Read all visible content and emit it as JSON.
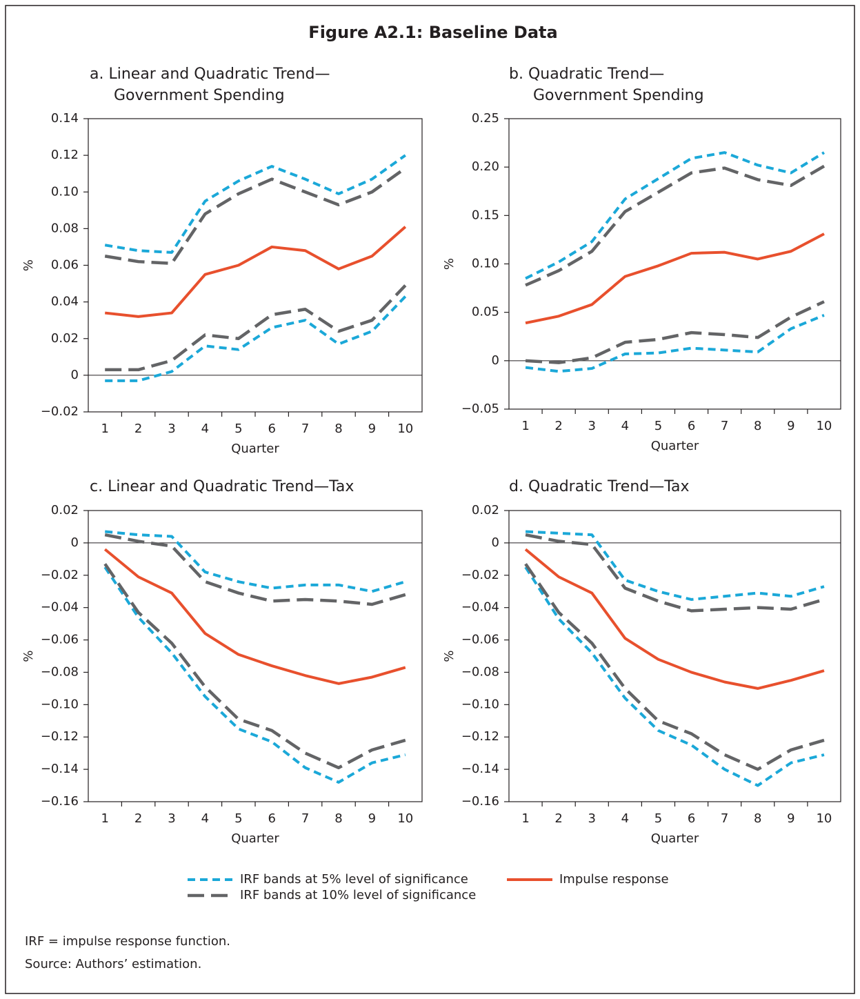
{
  "title": "Figure A2.1: Baseline Data",
  "notes": [
    "IRF = impulse response function.",
    "Source: Authors’ estimation."
  ],
  "chart_data": [
    {
      "type": "line",
      "title": [
        "a. Linear and Quadratic Trend—",
        "Government Spending"
      ],
      "x_label": "Quarter",
      "y_label": "%",
      "categories": [
        "1",
        "2",
        "3",
        "4",
        "5",
        "6",
        "7",
        "8",
        "9",
        "10"
      ],
      "ylim": [
        -0.02,
        0.14
      ],
      "yticks": [
        {
          "value": -0.02,
          "label": "−0.02"
        },
        0,
        0.02,
        0.04,
        0.06,
        0.08,
        {
          "value": 0.1,
          "label": "0.10"
        },
        0.12,
        0.14
      ],
      "series": [
        {
          "name": "IRF bands at 5% level of significance",
          "color": "#1ba8d8",
          "dash": "short",
          "values": [
            0.071,
            0.068,
            0.067,
            0.095,
            0.106,
            0.114,
            0.107,
            0.099,
            0.107,
            0.12
          ]
        },
        {
          "color": "#1ba8d8",
          "dash": "short",
          "values": [
            -0.003,
            -0.003,
            0.002,
            0.016,
            0.014,
            0.026,
            0.03,
            0.017,
            0.024,
            0.043
          ]
        },
        {
          "name": "IRF bands at 10% level of significance",
          "color": "#636466",
          "dash": "long",
          "values": [
            0.065,
            0.062,
            0.061,
            0.088,
            0.099,
            0.107,
            0.1,
            0.093,
            0.1,
            0.113
          ]
        },
        {
          "color": "#636466",
          "dash": "long",
          "values": [
            0.003,
            0.003,
            0.008,
            0.022,
            0.02,
            0.033,
            0.036,
            0.024,
            0.03,
            0.049
          ]
        },
        {
          "name": "Impulse response",
          "color": "#e8502d",
          "dash": "solid",
          "values": [
            0.034,
            0.032,
            0.034,
            0.055,
            0.06,
            0.07,
            0.068,
            0.058,
            0.065,
            0.081
          ]
        }
      ]
    },
    {
      "type": "line",
      "title": [
        "b. Quadratic Trend—",
        "Government Spending"
      ],
      "x_label": "Quarter",
      "y_label": "%",
      "categories": [
        "1",
        "2",
        "3",
        "4",
        "5",
        "6",
        "7",
        "8",
        "9",
        "10"
      ],
      "ylim": [
        -0.05,
        0.25
      ],
      "yticks": [
        {
          "value": -0.05,
          "label": "−0.05"
        },
        0,
        0.05,
        {
          "value": 0.1,
          "label": "0.10"
        },
        0.15,
        {
          "value": 0.2,
          "label": "0.20"
        },
        0.25
      ],
      "series": [
        {
          "color": "#1ba8d8",
          "dash": "short",
          "values": [
            0.085,
            0.102,
            0.123,
            0.167,
            0.188,
            0.209,
            0.215,
            0.202,
            0.194,
            0.215
          ]
        },
        {
          "color": "#1ba8d8",
          "dash": "short",
          "values": [
            -0.007,
            -0.011,
            -0.008,
            0.007,
            0.008,
            0.013,
            0.011,
            0.009,
            0.033,
            0.047
          ]
        },
        {
          "color": "#636466",
          "dash": "long",
          "values": [
            0.078,
            0.093,
            0.113,
            0.154,
            0.174,
            0.194,
            0.199,
            0.187,
            0.181,
            0.201
          ]
        },
        {
          "color": "#636466",
          "dash": "long",
          "values": [
            0.0,
            -0.002,
            0.003,
            0.019,
            0.022,
            0.029,
            0.027,
            0.024,
            0.045,
            0.061
          ]
        },
        {
          "color": "#e8502d",
          "dash": "solid",
          "values": [
            0.039,
            0.046,
            0.058,
            0.087,
            0.098,
            0.111,
            0.112,
            0.105,
            0.113,
            0.131
          ]
        }
      ]
    },
    {
      "type": "line",
      "title": [
        "c. Linear and Quadratic Trend—Tax"
      ],
      "x_label": "Quarter",
      "y_label": "%",
      "categories": [
        "1",
        "2",
        "3",
        "4",
        "5",
        "6",
        "7",
        "8",
        "9",
        "10"
      ],
      "ylim": [
        -0.16,
        0.02
      ],
      "yticks": [
        {
          "value": -0.16,
          "label": "−0.16"
        },
        {
          "value": -0.14,
          "label": "−0.14"
        },
        {
          "value": -0.12,
          "label": "−0.12"
        },
        {
          "value": -0.1,
          "label": "−0.10"
        },
        {
          "value": -0.08,
          "label": "−0.08"
        },
        {
          "value": -0.06,
          "label": "−0.06"
        },
        {
          "value": -0.04,
          "label": "−0.04"
        },
        {
          "value": -0.02,
          "label": "−0.02"
        },
        0,
        0.02
      ],
      "series": [
        {
          "color": "#1ba8d8",
          "dash": "short",
          "values": [
            0.007,
            0.005,
            0.004,
            -0.018,
            -0.024,
            -0.028,
            -0.026,
            -0.026,
            -0.03,
            -0.024
          ]
        },
        {
          "color": "#1ba8d8",
          "dash": "short",
          "values": [
            -0.015,
            -0.046,
            -0.068,
            -0.095,
            -0.115,
            -0.123,
            -0.139,
            -0.148,
            -0.136,
            -0.131
          ]
        },
        {
          "color": "#636466",
          "dash": "long",
          "values": [
            0.005,
            0.001,
            -0.002,
            -0.024,
            -0.031,
            -0.036,
            -0.035,
            -0.036,
            -0.038,
            -0.032
          ]
        },
        {
          "color": "#636466",
          "dash": "long",
          "values": [
            -0.013,
            -0.043,
            -0.062,
            -0.089,
            -0.109,
            -0.116,
            -0.13,
            -0.139,
            -0.128,
            -0.122
          ]
        },
        {
          "color": "#e8502d",
          "dash": "solid",
          "values": [
            -0.004,
            -0.021,
            -0.031,
            -0.056,
            -0.069,
            -0.076,
            -0.082,
            -0.087,
            -0.083,
            -0.077
          ]
        }
      ]
    },
    {
      "type": "line",
      "title": [
        "d. Quadratic Trend—Tax"
      ],
      "x_label": "Quarter",
      "y_label": "%",
      "categories": [
        "1",
        "2",
        "3",
        "4",
        "5",
        "6",
        "7",
        "8",
        "9",
        "10"
      ],
      "ylim": [
        -0.16,
        0.02
      ],
      "yticks": [
        {
          "value": -0.16,
          "label": "−0.16"
        },
        {
          "value": -0.14,
          "label": "−0.14"
        },
        {
          "value": -0.12,
          "label": "−0.12"
        },
        {
          "value": -0.1,
          "label": "−0.10"
        },
        {
          "value": -0.08,
          "label": "−0.08"
        },
        {
          "value": -0.06,
          "label": "−0.06"
        },
        {
          "value": -0.04,
          "label": "−0.04"
        },
        {
          "value": -0.02,
          "label": "−0.02"
        },
        0,
        0.02
      ],
      "series": [
        {
          "color": "#1ba8d8",
          "dash": "short",
          "values": [
            0.007,
            0.006,
            0.005,
            -0.023,
            -0.03,
            -0.035,
            -0.033,
            -0.031,
            -0.033,
            -0.027
          ]
        },
        {
          "color": "#1ba8d8",
          "dash": "short",
          "values": [
            -0.015,
            -0.047,
            -0.068,
            -0.096,
            -0.116,
            -0.125,
            -0.14,
            -0.15,
            -0.136,
            -0.131
          ]
        },
        {
          "color": "#636466",
          "dash": "long",
          "values": [
            0.005,
            0.001,
            -0.001,
            -0.028,
            -0.036,
            -0.042,
            -0.041,
            -0.04,
            -0.041,
            -0.035
          ]
        },
        {
          "color": "#636466",
          "dash": "long",
          "values": [
            -0.013,
            -0.043,
            -0.062,
            -0.09,
            -0.11,
            -0.118,
            -0.131,
            -0.14,
            -0.128,
            -0.122
          ]
        },
        {
          "color": "#e8502d",
          "dash": "solid",
          "values": [
            -0.004,
            -0.021,
            -0.031,
            -0.059,
            -0.072,
            -0.08,
            -0.086,
            -0.09,
            -0.085,
            -0.079
          ]
        }
      ]
    }
  ]
}
